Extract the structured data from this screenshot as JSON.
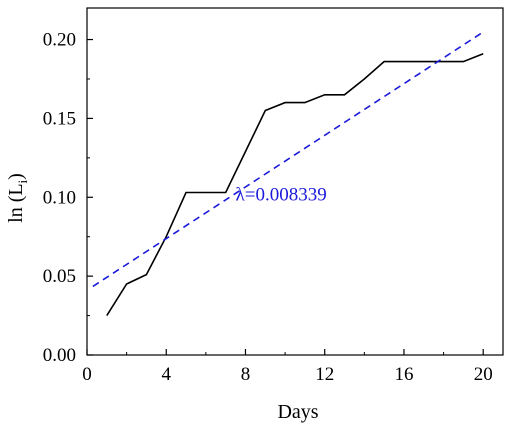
{
  "chart_data": {
    "type": "line",
    "title": "",
    "xlabel": "Days",
    "ylabel_main": "ln (L",
    "ylabel_sub": "i",
    "ylabel_end": ")",
    "xlim": [
      0,
      21
    ],
    "ylim": [
      0,
      0.22
    ],
    "x_ticks": [
      0,
      4,
      8,
      12,
      16,
      20
    ],
    "x_tick_labels": [
      "0",
      "4",
      "8",
      "12",
      "16",
      "20"
    ],
    "y_ticks": [
      0,
      0.05,
      0.1,
      0.15,
      0.2
    ],
    "y_tick_labels": [
      "0.00",
      "0.05",
      "0.10",
      "0.15",
      "0.20"
    ],
    "grid": false,
    "series": [
      {
        "style": "solid",
        "color": "#000000",
        "x": [
          1,
          2,
          3,
          4,
          5,
          6,
          7,
          8,
          9,
          10,
          11,
          12,
          13,
          14,
          15,
          16,
          17,
          18,
          19,
          20
        ],
        "y": [
          0.025,
          0.045,
          0.051,
          0.075,
          0.103,
          0.103,
          0.103,
          0.129,
          0.155,
          0.16,
          0.16,
          0.165,
          0.165,
          0.175,
          0.186,
          0.186,
          0.186,
          0.186,
          0.186,
          0.191
        ]
      },
      {
        "style": "dashed",
        "color": "#1a1adb",
        "x": [
          0.3,
          20
        ],
        "y": [
          0.0435,
          0.2048
        ]
      }
    ],
    "annotations": [
      {
        "text": "λ=0.008339",
        "color": "#1a1adb",
        "x": 9.8,
        "y": 0.098
      }
    ]
  }
}
